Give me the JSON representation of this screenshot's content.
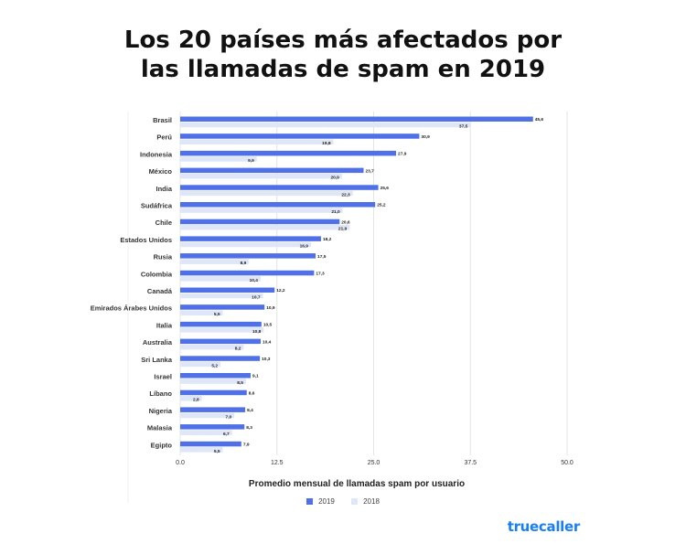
{
  "title": "Los 20 países más afectados por\nlas llamadas de spam en 2019",
  "brand": "truecaller",
  "chart_data": {
    "type": "bar",
    "orientation": "horizontal",
    "title": "Los 20 países más afectados por las llamadas de spam en 2019",
    "xlabel": "Promedio mensual de llamadas spam por usuario",
    "ylabel": "",
    "xlim": [
      0,
      50
    ],
    "xticks": [
      "0.0",
      "12.5",
      "25.0",
      "37.5",
      "50.0"
    ],
    "grid": true,
    "legend_position": "bottom",
    "categories": [
      "Brasil",
      "Perú",
      "Indonesia",
      "México",
      "India",
      "Sudáfrica",
      "Chile",
      "Estados Unidos",
      "Rusia",
      "Colombia",
      "Canadá",
      "Emirados Árabes Unidos",
      "Italia",
      "Australia",
      "Sri Lanka",
      "Israel",
      "Líbano",
      "Nigeria",
      "Malasia",
      "Egipto"
    ],
    "series": [
      {
        "name": "2019",
        "color": "#4f70e6",
        "values": [
          45.6,
          30.9,
          27.9,
          23.7,
          25.6,
          25.2,
          20.6,
          18.2,
          17.5,
          17.3,
          12.2,
          10.9,
          10.5,
          10.4,
          10.3,
          9.1,
          8.6,
          8.4,
          8.3,
          7.9
        ],
        "labels": [
          "45,6",
          "30,9",
          "27,9",
          "23,7",
          "25,6",
          "25,2",
          "20,6",
          "18,2",
          "17,5",
          "17,3",
          "12,2",
          "10,9",
          "10,5",
          "10,4",
          "10,3",
          "9,1",
          "8,6",
          "8,4",
          "8,3",
          "7,9"
        ]
      },
      {
        "name": "2018",
        "color": "#dfe6f7",
        "values": [
          37.5,
          19.8,
          9.9,
          20.9,
          22.3,
          21.0,
          21.9,
          16.9,
          8.9,
          10.4,
          10.7,
          5.5,
          10.8,
          8.2,
          5.2,
          8.5,
          2.8,
          7.0,
          6.7,
          5.5
        ],
        "labels": [
          "37,5",
          "19,8",
          "9,9",
          "20,9",
          "22,3",
          "21,0",
          "21,9",
          "16,9",
          "8,9",
          "10,4",
          "10,7",
          "5,5",
          "10,8",
          "8,2",
          "5,2",
          "8,5",
          "2,8",
          "7,0",
          "6,7",
          "5,5"
        ]
      }
    ]
  }
}
